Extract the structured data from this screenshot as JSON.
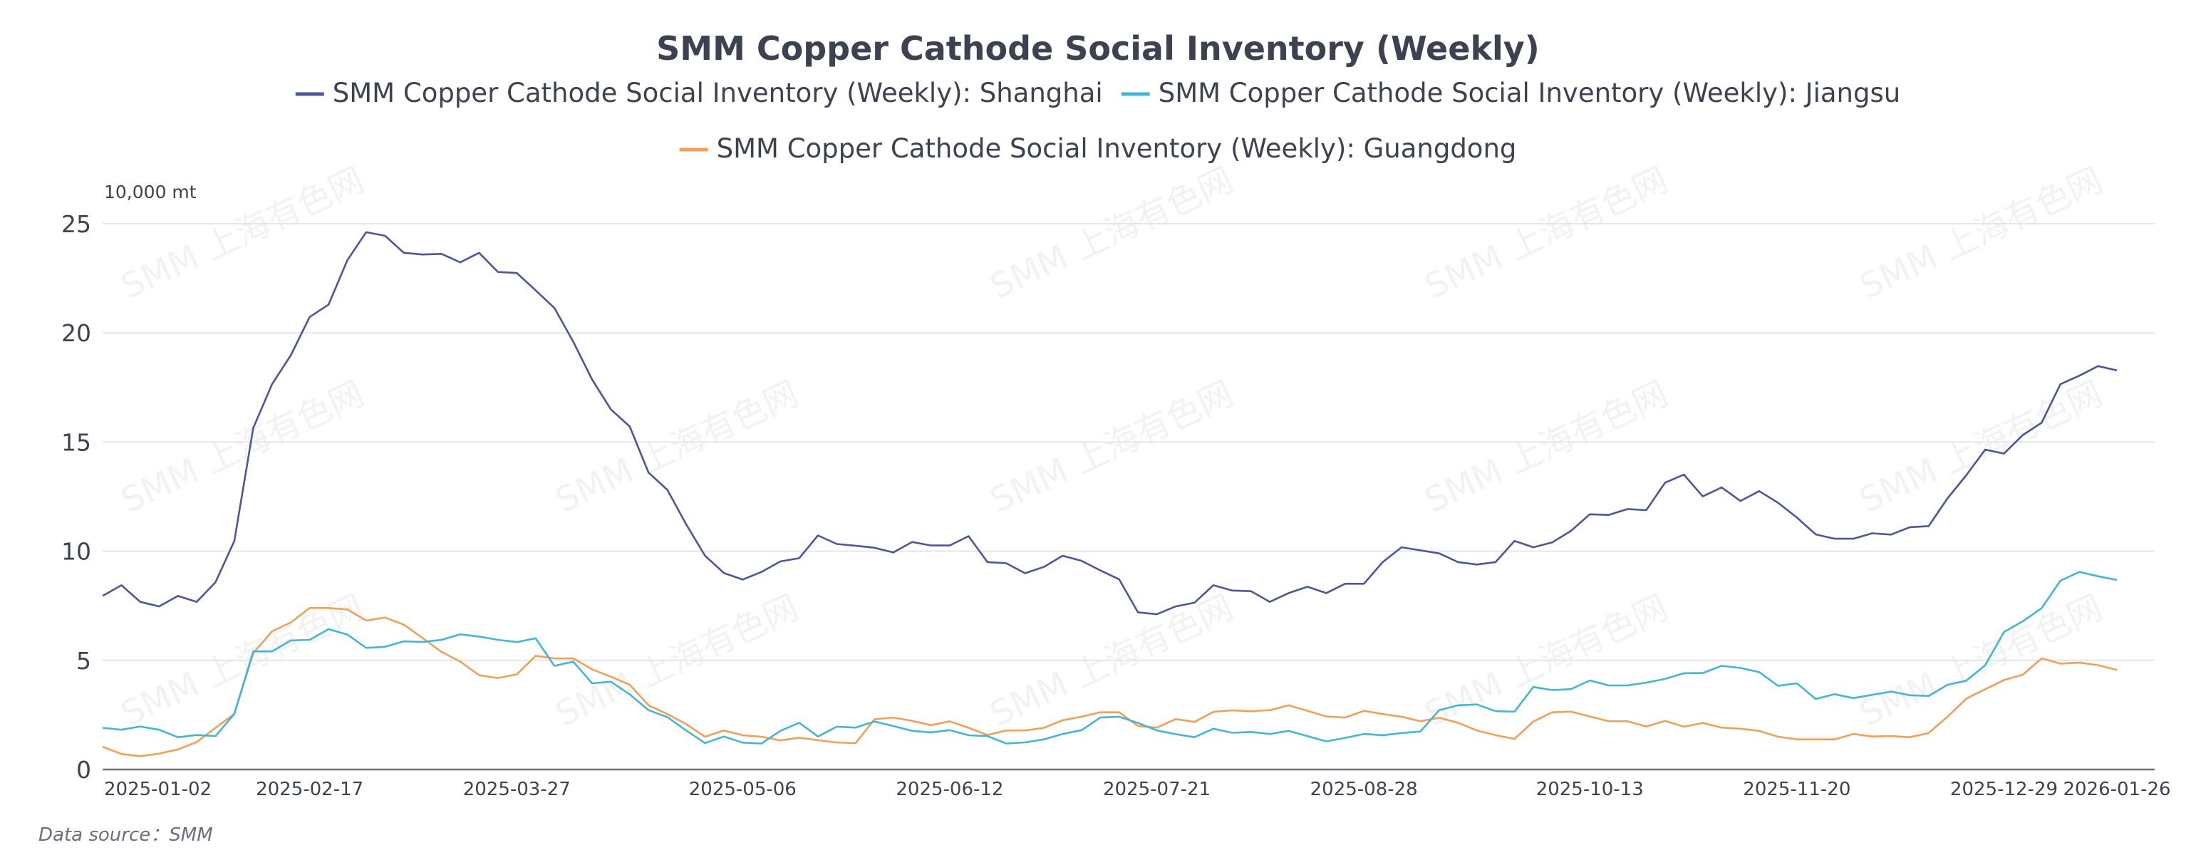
{
  "chart_data": {
    "type": "line",
    "title": "SMM Copper Cathode Social Inventory (Weekly)",
    "ylabel": "10,000 mt",
    "xlabel": "",
    "ylim": [
      0,
      25
    ],
    "y_ticks": [
      0,
      5,
      10,
      15,
      20,
      25
    ],
    "grid": true,
    "legend_position": "top-center",
    "x_tick_labels": [
      {
        "label": "2025-01-02",
        "index": 0
      },
      {
        "label": "2025-02-17",
        "index": 11
      },
      {
        "label": "2025-03-27",
        "index": 22
      },
      {
        "label": "2025-05-06",
        "index": 34
      },
      {
        "label": "2025-06-12",
        "index": 45
      },
      {
        "label": "2025-07-21",
        "index": 56
      },
      {
        "label": "2025-08-28",
        "index": 67
      },
      {
        "label": "2025-10-13",
        "index": 79
      },
      {
        "label": "2025-11-20",
        "index": 90
      },
      {
        "label": "2025-12-29",
        "index": 101
      },
      {
        "label": "2026-01-26",
        "index": 107
      }
    ],
    "series": [
      {
        "name": "SMM Copper Cathode Social Inventory (Weekly): Shanghai",
        "color": "#4c5796",
        "values": [
          7.95,
          8.44,
          7.68,
          7.47,
          7.95,
          7.68,
          8.58,
          10.47,
          15.64,
          17.65,
          18.98,
          20.73,
          21.29,
          23.33,
          24.61,
          24.45,
          23.67,
          23.59,
          23.62,
          23.23,
          23.67,
          22.79,
          22.74,
          21.95,
          21.14,
          19.6,
          17.87,
          16.49,
          15.71,
          13.6,
          12.81,
          11.23,
          9.79,
          9.0,
          8.7,
          9.05,
          9.53,
          9.68,
          10.72,
          10.33,
          10.25,
          10.16,
          9.94,
          10.42,
          10.26,
          10.26,
          10.69,
          9.5,
          9.45,
          8.99,
          9.28,
          9.79,
          9.56,
          9.12,
          8.71,
          7.2,
          7.11,
          7.47,
          7.64,
          8.44,
          8.2,
          8.17,
          7.68,
          8.08,
          8.37,
          8.08,
          8.51,
          8.51,
          9.5,
          10.18,
          10.04,
          9.9,
          9.5,
          9.39,
          9.5,
          10.47,
          10.18,
          10.4,
          10.93,
          11.69,
          11.66,
          11.93,
          11.88,
          13.14,
          13.51,
          12.51,
          12.92,
          12.3,
          12.75,
          12.22,
          11.54,
          10.77,
          10.57,
          10.57,
          10.82,
          10.76,
          11.1,
          11.15,
          12.42,
          13.48,
          14.65,
          14.47,
          15.32,
          15.88,
          17.65,
          18.04,
          18.48,
          18.28
        ]
      },
      {
        "name": "SMM Copper Cathode Social Inventory (Weekly): Jiangsu",
        "color": "#45b6cf",
        "values": [
          1.91,
          1.82,
          1.97,
          1.82,
          1.48,
          1.58,
          1.53,
          2.55,
          5.41,
          5.41,
          5.91,
          5.94,
          6.43,
          6.18,
          5.57,
          5.62,
          5.87,
          5.84,
          5.94,
          6.19,
          6.09,
          5.94,
          5.84,
          6.01,
          4.75,
          4.94,
          3.95,
          4.02,
          3.44,
          2.72,
          2.4,
          1.79,
          1.21,
          1.51,
          1.23,
          1.19,
          1.77,
          2.14,
          1.51,
          1.96,
          1.92,
          2.2,
          1.99,
          1.77,
          1.7,
          1.8,
          1.57,
          1.53,
          1.19,
          1.24,
          1.38,
          1.63,
          1.8,
          2.38,
          2.42,
          2.13,
          1.79,
          1.62,
          1.48,
          1.87,
          1.68,
          1.72,
          1.63,
          1.77,
          1.53,
          1.29,
          1.45,
          1.63,
          1.57,
          1.67,
          1.74,
          2.72,
          2.94,
          2.98,
          2.67,
          2.65,
          3.78,
          3.64,
          3.68,
          4.08,
          3.85,
          3.85,
          3.98,
          4.15,
          4.41,
          4.42,
          4.75,
          4.65,
          4.46,
          3.83,
          3.95,
          3.23,
          3.45,
          3.27,
          3.42,
          3.57,
          3.4,
          3.37,
          3.88,
          4.07,
          4.77,
          6.3,
          6.79,
          7.39,
          8.65,
          9.05,
          8.85,
          8.68
        ]
      },
      {
        "name": "SMM Copper Cathode Social Inventory (Weekly): Guangdong",
        "color": "#f0a05a",
        "values": [
          1.04,
          0.71,
          0.61,
          0.73,
          0.92,
          1.26,
          1.91,
          2.55,
          5.33,
          6.33,
          6.74,
          7.4,
          7.4,
          7.33,
          6.82,
          6.96,
          6.64,
          6.02,
          5.39,
          4.94,
          4.32,
          4.19,
          4.36,
          5.21,
          5.09,
          5.09,
          4.59,
          4.25,
          3.88,
          2.94,
          2.54,
          2.08,
          1.5,
          1.79,
          1.57,
          1.5,
          1.33,
          1.46,
          1.34,
          1.24,
          1.21,
          2.3,
          2.38,
          2.23,
          2.03,
          2.21,
          1.91,
          1.58,
          1.79,
          1.79,
          1.91,
          2.26,
          2.42,
          2.62,
          2.62,
          1.99,
          1.92,
          2.31,
          2.18,
          2.64,
          2.71,
          2.67,
          2.72,
          2.94,
          2.69,
          2.43,
          2.38,
          2.69,
          2.54,
          2.42,
          2.21,
          2.37,
          2.14,
          1.79,
          1.57,
          1.4,
          2.2,
          2.62,
          2.65,
          2.43,
          2.21,
          2.21,
          1.97,
          2.23,
          1.96,
          2.13,
          1.92,
          1.87,
          1.77,
          1.5,
          1.38,
          1.38,
          1.38,
          1.63,
          1.51,
          1.53,
          1.48,
          1.67,
          2.42,
          3.25,
          3.68,
          4.1,
          4.34,
          5.09,
          4.85,
          4.9,
          4.78,
          4.56
        ]
      }
    ],
    "source_note": "Data source：SMM",
    "watermark": "SMM 上海有色网"
  },
  "colors": {
    "text": "#3d4250",
    "grid": "#e6e6ea",
    "axis": "#6e7380"
  }
}
